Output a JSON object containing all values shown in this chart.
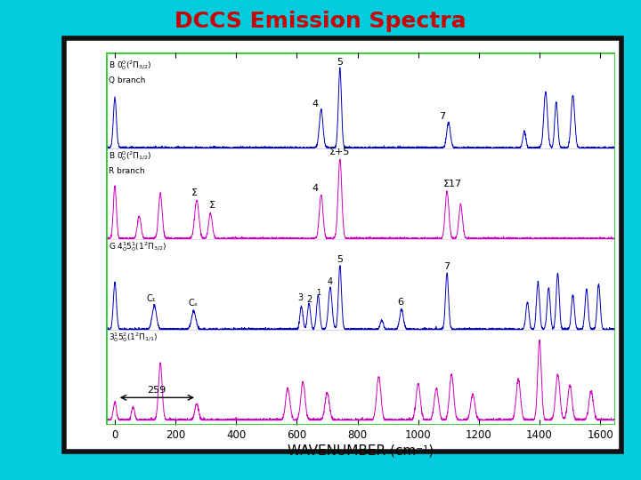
{
  "title": "DCCS Emission Spectra",
  "title_color": "#cc0000",
  "title_fontsize": 18,
  "bg_color": "#00ccdd",
  "border_color": "#111111",
  "inner_border_color": "#33cc33",
  "xlabel": "WAVENUMBER (cm⁻¹)",
  "xlabel_fontsize": 11,
  "xmin": -30,
  "xmax": 1650,
  "xticks": [
    0,
    200,
    400,
    600,
    800,
    1000,
    1200,
    1400,
    1600
  ],
  "blue_color": "#0000bb",
  "magenta_color": "#cc00bb"
}
